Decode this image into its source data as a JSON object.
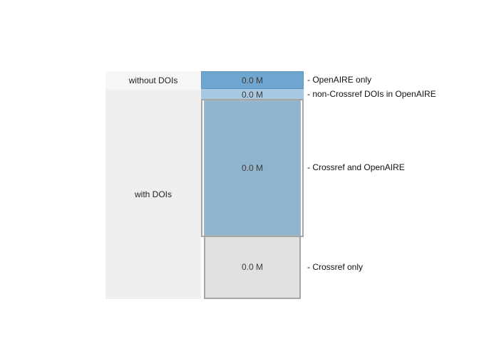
{
  "chart_data": {
    "type": "table",
    "rows": [
      {
        "label": "without DOIs"
      },
      {
        "label": "with DOIs"
      }
    ],
    "segments": [
      {
        "value_label": "0.0 M",
        "legend": "- OpenAIRE only",
        "color": "#6fa6d0"
      },
      {
        "value_label": "0.0 M",
        "legend": "- non-Crossref DOIs in OpenAIRE",
        "color": "#a7c9e4"
      },
      {
        "value_label": "0.0 M",
        "legend": "- Crossref and OpenAIRE",
        "color": "#8fb4cd"
      },
      {
        "value_label": "0.0 M",
        "legend": "- Crossref only",
        "color": "#e0e0e0"
      }
    ],
    "colors": {
      "row_without_bg": "#f6f6f6",
      "row_with_bg": "#efefef",
      "outline": "#a5a5a5"
    }
  }
}
